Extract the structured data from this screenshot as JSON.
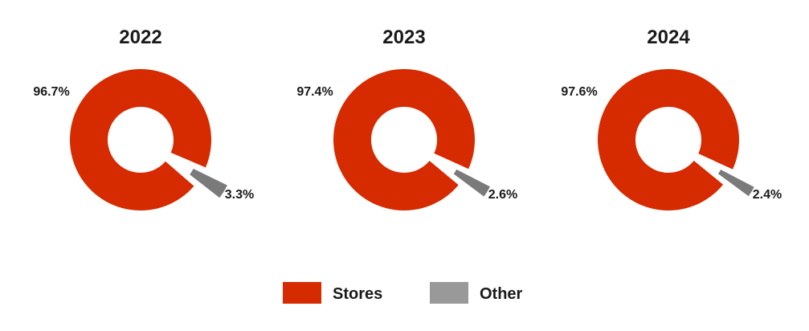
{
  "chart_data": [
    {
      "type": "pie",
      "title": "2022",
      "categories": [
        "Stores",
        "Other"
      ],
      "values": [
        96.7,
        3.3
      ],
      "value_labels": [
        "96.7%",
        "3.3%"
      ]
    },
    {
      "type": "pie",
      "title": "2023",
      "categories": [
        "Stores",
        "Other"
      ],
      "values": [
        97.4,
        2.6
      ],
      "value_labels": [
        "97.4%",
        "2.6%"
      ]
    },
    {
      "type": "pie",
      "title": "2024",
      "categories": [
        "Stores",
        "Other"
      ],
      "values": [
        97.6,
        2.4
      ],
      "value_labels": [
        "97.6%",
        "2.4%"
      ]
    }
  ],
  "legend": {
    "placement": "bottom",
    "items": [
      {
        "label": "Stores",
        "color": "#d62b00"
      },
      {
        "label": "Other",
        "color": "#999999"
      }
    ]
  },
  "colors": {
    "stores": "#d62b00",
    "other": "#7a7a7a"
  }
}
